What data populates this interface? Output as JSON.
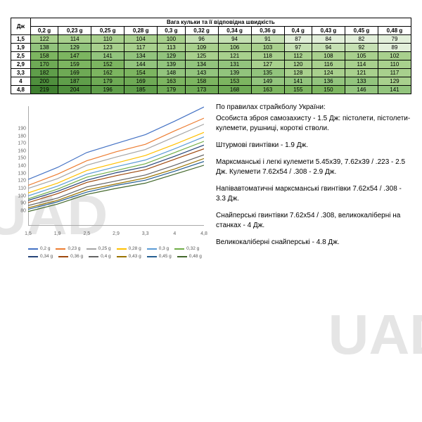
{
  "table": {
    "title": "Вага кульки та її відповідна швидкість",
    "corner": "Дж",
    "weights": [
      "0,2 g",
      "0,23 g",
      "0,25 g",
      "0,28 g",
      "0,3 g",
      "0,32 g",
      "0,34 g",
      "0,36 g",
      "0,4 g",
      "0,43 g",
      "0,45 g",
      "0,48 g"
    ],
    "rows": [
      {
        "dj": "1,5",
        "v": [
          122,
          114,
          110,
          104,
          100,
          96,
          94,
          91,
          87,
          84,
          82,
          79
        ]
      },
      {
        "dj": "1,9",
        "v": [
          138,
          129,
          123,
          117,
          113,
          109,
          106,
          103,
          97,
          94,
          92,
          89
        ]
      },
      {
        "dj": "2,5",
        "v": [
          158,
          147,
          141,
          134,
          129,
          125,
          121,
          118,
          112,
          108,
          105,
          102
        ]
      },
      {
        "dj": "2,9",
        "v": [
          170,
          159,
          152,
          144,
          139,
          134,
          131,
          127,
          120,
          116,
          114,
          110
        ]
      },
      {
        "dj": "3,3",
        "v": [
          182,
          169,
          162,
          154,
          148,
          143,
          139,
          135,
          128,
          124,
          121,
          117
        ]
      },
      {
        "dj": "4",
        "v": [
          200,
          187,
          179,
          169,
          163,
          158,
          153,
          149,
          141,
          136,
          133,
          129
        ]
      },
      {
        "dj": "4,8",
        "v": [
          219,
          204,
          196,
          185,
          179,
          173,
          168,
          163,
          155,
          150,
          146,
          141
        ]
      }
    ],
    "cell_colors": [
      [
        "#a8d08d",
        "#a8d08d",
        "#a8d08d",
        "#a8d08d",
        "#a8d08d",
        "#c5e0b3",
        "#c5e0b3",
        "#c5e0b3",
        "#e2efda",
        "#e2efda",
        "#e2efda",
        "#e2efda"
      ],
      [
        "#92c47d",
        "#92c47d",
        "#a8d08d",
        "#a8d08d",
        "#a8d08d",
        "#a8d08d",
        "#a8d08d",
        "#a8d08d",
        "#c5e0b3",
        "#c5e0b3",
        "#c5e0b3",
        "#e2efda"
      ],
      [
        "#7cb560",
        "#7cb560",
        "#92c47d",
        "#92c47d",
        "#92c47d",
        "#a8d08d",
        "#a8d08d",
        "#a8d08d",
        "#a8d08d",
        "#a8d08d",
        "#a8d08d",
        "#a8d08d"
      ],
      [
        "#6eaa55",
        "#7cb560",
        "#7cb560",
        "#92c47d",
        "#92c47d",
        "#92c47d",
        "#92c47d",
        "#a8d08d",
        "#a8d08d",
        "#a8d08d",
        "#a8d08d",
        "#a8d08d"
      ],
      [
        "#5f9e4a",
        "#6eaa55",
        "#7cb560",
        "#7cb560",
        "#92c47d",
        "#92c47d",
        "#92c47d",
        "#92c47d",
        "#a8d08d",
        "#a8d08d",
        "#a8d08d",
        "#a8d08d"
      ],
      [
        "#4f8f3d",
        "#5f9e4a",
        "#6eaa55",
        "#6eaa55",
        "#7cb560",
        "#7cb560",
        "#7cb560",
        "#92c47d",
        "#92c47d",
        "#92c47d",
        "#92c47d",
        "#a8d08d"
      ],
      [
        "#3f7f30",
        "#4f8f3d",
        "#5f9e4a",
        "#5f9e4a",
        "#6eaa55",
        "#6eaa55",
        "#6eaa55",
        "#7cb560",
        "#7cb560",
        "#7cb560",
        "#92c47d",
        "#92c47d"
      ]
    ]
  },
  "chart": {
    "type": "line",
    "x_categories": [
      "1,5",
      "1,9",
      "2,5",
      "2,9",
      "3,3",
      "4",
      "4,8"
    ],
    "ylim": [
      60,
      220
    ],
    "yticks": [
      60,
      70,
      80,
      90,
      100,
      110,
      120,
      130,
      140,
      150,
      160,
      170,
      180,
      190,
      200,
      210,
      220
    ],
    "ylabels_shown": [
      80,
      90,
      100,
      110,
      120,
      130,
      140,
      150,
      160,
      170,
      180,
      190
    ],
    "series": [
      {
        "name": "0,2 g",
        "color": "#4472c4",
        "values": [
          122,
          138,
          158,
          170,
          182,
          200,
          219
        ]
      },
      {
        "name": "0,23 g",
        "color": "#ed7d31",
        "values": [
          114,
          129,
          147,
          159,
          169,
          187,
          204
        ]
      },
      {
        "name": "0,25 g",
        "color": "#a5a5a5",
        "values": [
          110,
          123,
          141,
          152,
          162,
          179,
          196
        ]
      },
      {
        "name": "0,28 g",
        "color": "#ffc000",
        "values": [
          104,
          117,
          134,
          144,
          154,
          169,
          185
        ]
      },
      {
        "name": "0,3 g",
        "color": "#5b9bd5",
        "values": [
          100,
          113,
          129,
          139,
          148,
          163,
          179
        ]
      },
      {
        "name": "0,32 g",
        "color": "#70ad47",
        "values": [
          96,
          109,
          125,
          134,
          143,
          158,
          173
        ]
      },
      {
        "name": "0,34 g",
        "color": "#264478",
        "values": [
          94,
          106,
          121,
          131,
          139,
          153,
          168
        ]
      },
      {
        "name": "0,36 g",
        "color": "#9e480e",
        "values": [
          91,
          103,
          118,
          127,
          135,
          149,
          163
        ]
      },
      {
        "name": "0,4 g",
        "color": "#636363",
        "values": [
          87,
          97,
          112,
          120,
          128,
          141,
          155
        ]
      },
      {
        "name": "0,43 g",
        "color": "#997300",
        "values": [
          84,
          94,
          108,
          116,
          124,
          136,
          150
        ]
      },
      {
        "name": "0,45 g",
        "color": "#255e91",
        "values": [
          82,
          92,
          105,
          114,
          121,
          133,
          146
        ]
      },
      {
        "name": "0,48 g",
        "color": "#43682b",
        "values": [
          79,
          89,
          102,
          110,
          117,
          129,
          141
        ]
      }
    ]
  },
  "text": {
    "title": "По правилах страйкболу України:",
    "p1": "Особиста зброя самозахисту - 1.5 Дж: пістолети, пістолети-кулемети, рушниці, короткі стволи.",
    "p2": "Штурмові гвинтівки - 1.9 Дж.",
    "p3": "Марксманські і легкі кулемети 5.45х39, 7.62х39 / .223 - 2.5 Дж. Кулемети 7.62х54 / .308 - 2.9 Дж.",
    "p4": "Напівавтоматичні марксманські гвинтівки 7.62х54 / .308 - 3.3 Дж.",
    "p5": "Снайперські гвинтівки 7.62х54 / .308, великокаліберні на станках - 4 Дж.",
    "p6": "Великокаліберні снайперські - 4.8 Дж."
  },
  "watermark": "UAD"
}
